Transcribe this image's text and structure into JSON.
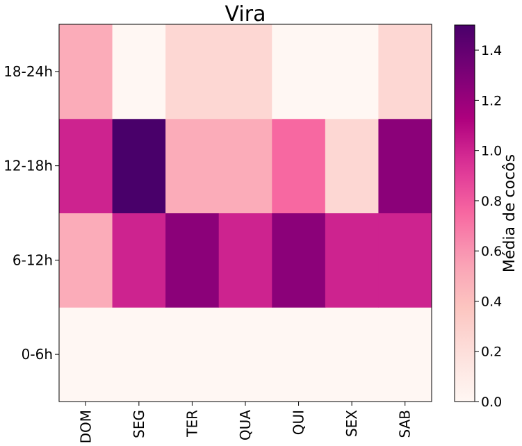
{
  "chart_data": {
    "type": "heatmap",
    "title": "Vira",
    "x_categories": [
      "DOM",
      "SEG",
      "TER",
      "QUA",
      "QUI",
      "SEX",
      "SAB"
    ],
    "y_categories": [
      "0-6h",
      "6-12h",
      "12-18h",
      "18-24h"
    ],
    "values": [
      [
        0.0,
        0.0,
        0.0,
        0.0,
        0.0,
        0.0,
        0.0
      ],
      [
        0.5,
        1.0,
        1.25,
        1.0,
        1.25,
        1.0,
        1.0
      ],
      [
        1.0,
        1.5,
        0.5,
        0.5,
        0.75,
        0.25,
        1.25
      ],
      [
        0.5,
        0.0,
        0.25,
        0.25,
        0.0,
        0.0,
        0.25
      ]
    ],
    "colorbar": {
      "label": "Média de cocôs",
      "range": [
        0.0,
        1.5
      ],
      "ticks": [
        "0.0",
        "0.2",
        "0.4",
        "0.6",
        "0.8",
        "1.0",
        "1.2",
        "1.4"
      ],
      "colormap": "RdPu"
    }
  }
}
